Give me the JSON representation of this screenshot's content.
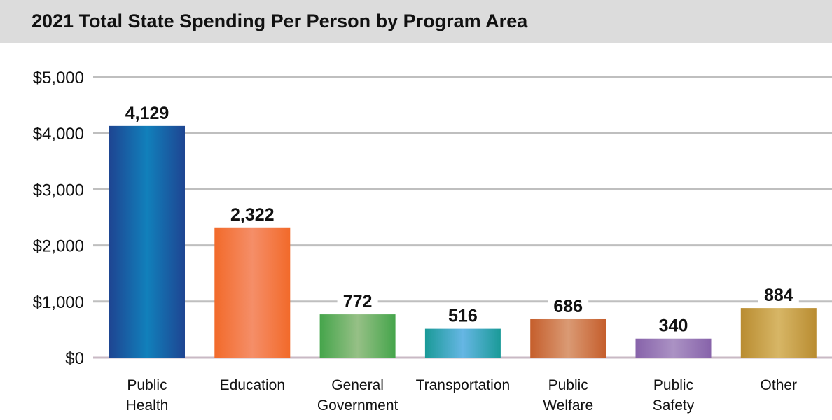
{
  "chart_data": {
    "type": "bar",
    "title": "2021 Total State Spending Per Person by Program Area",
    "categories": [
      [
        "Public",
        "Health"
      ],
      [
        "Education"
      ],
      [
        "General",
        "Government"
      ],
      [
        "Transportation"
      ],
      [
        "Public",
        "Welfare"
      ],
      [
        "Public",
        "Safety"
      ],
      [
        "Other"
      ]
    ],
    "values": [
      4129,
      2322,
      772,
      516,
      686,
      340,
      884
    ],
    "data_labels": [
      "4,129",
      "2,322",
      "772",
      "516",
      "686",
      "340",
      "884"
    ],
    "ylim": [
      0,
      5000
    ],
    "yticks": [
      0,
      1000,
      2000,
      3000,
      4000,
      5000
    ],
    "ytick_labels": [
      "$0",
      "$1,000",
      "$2,000",
      "$3,000",
      "$4,000",
      "$5,000"
    ],
    "grid": true,
    "xlabel": "",
    "ylabel": "",
    "colors": [
      [
        "#1e4592",
        "#1180bb"
      ],
      [
        "#f26a2a",
        "#f58e68"
      ],
      [
        "#45a54b",
        "#96c086"
      ],
      [
        "#1a9a98",
        "#66b6e4"
      ],
      [
        "#c55e2c",
        "#da9a74"
      ],
      [
        "#8763aa",
        "#ab92c4"
      ],
      [
        "#b98c31",
        "#d7b666"
      ]
    ]
  }
}
